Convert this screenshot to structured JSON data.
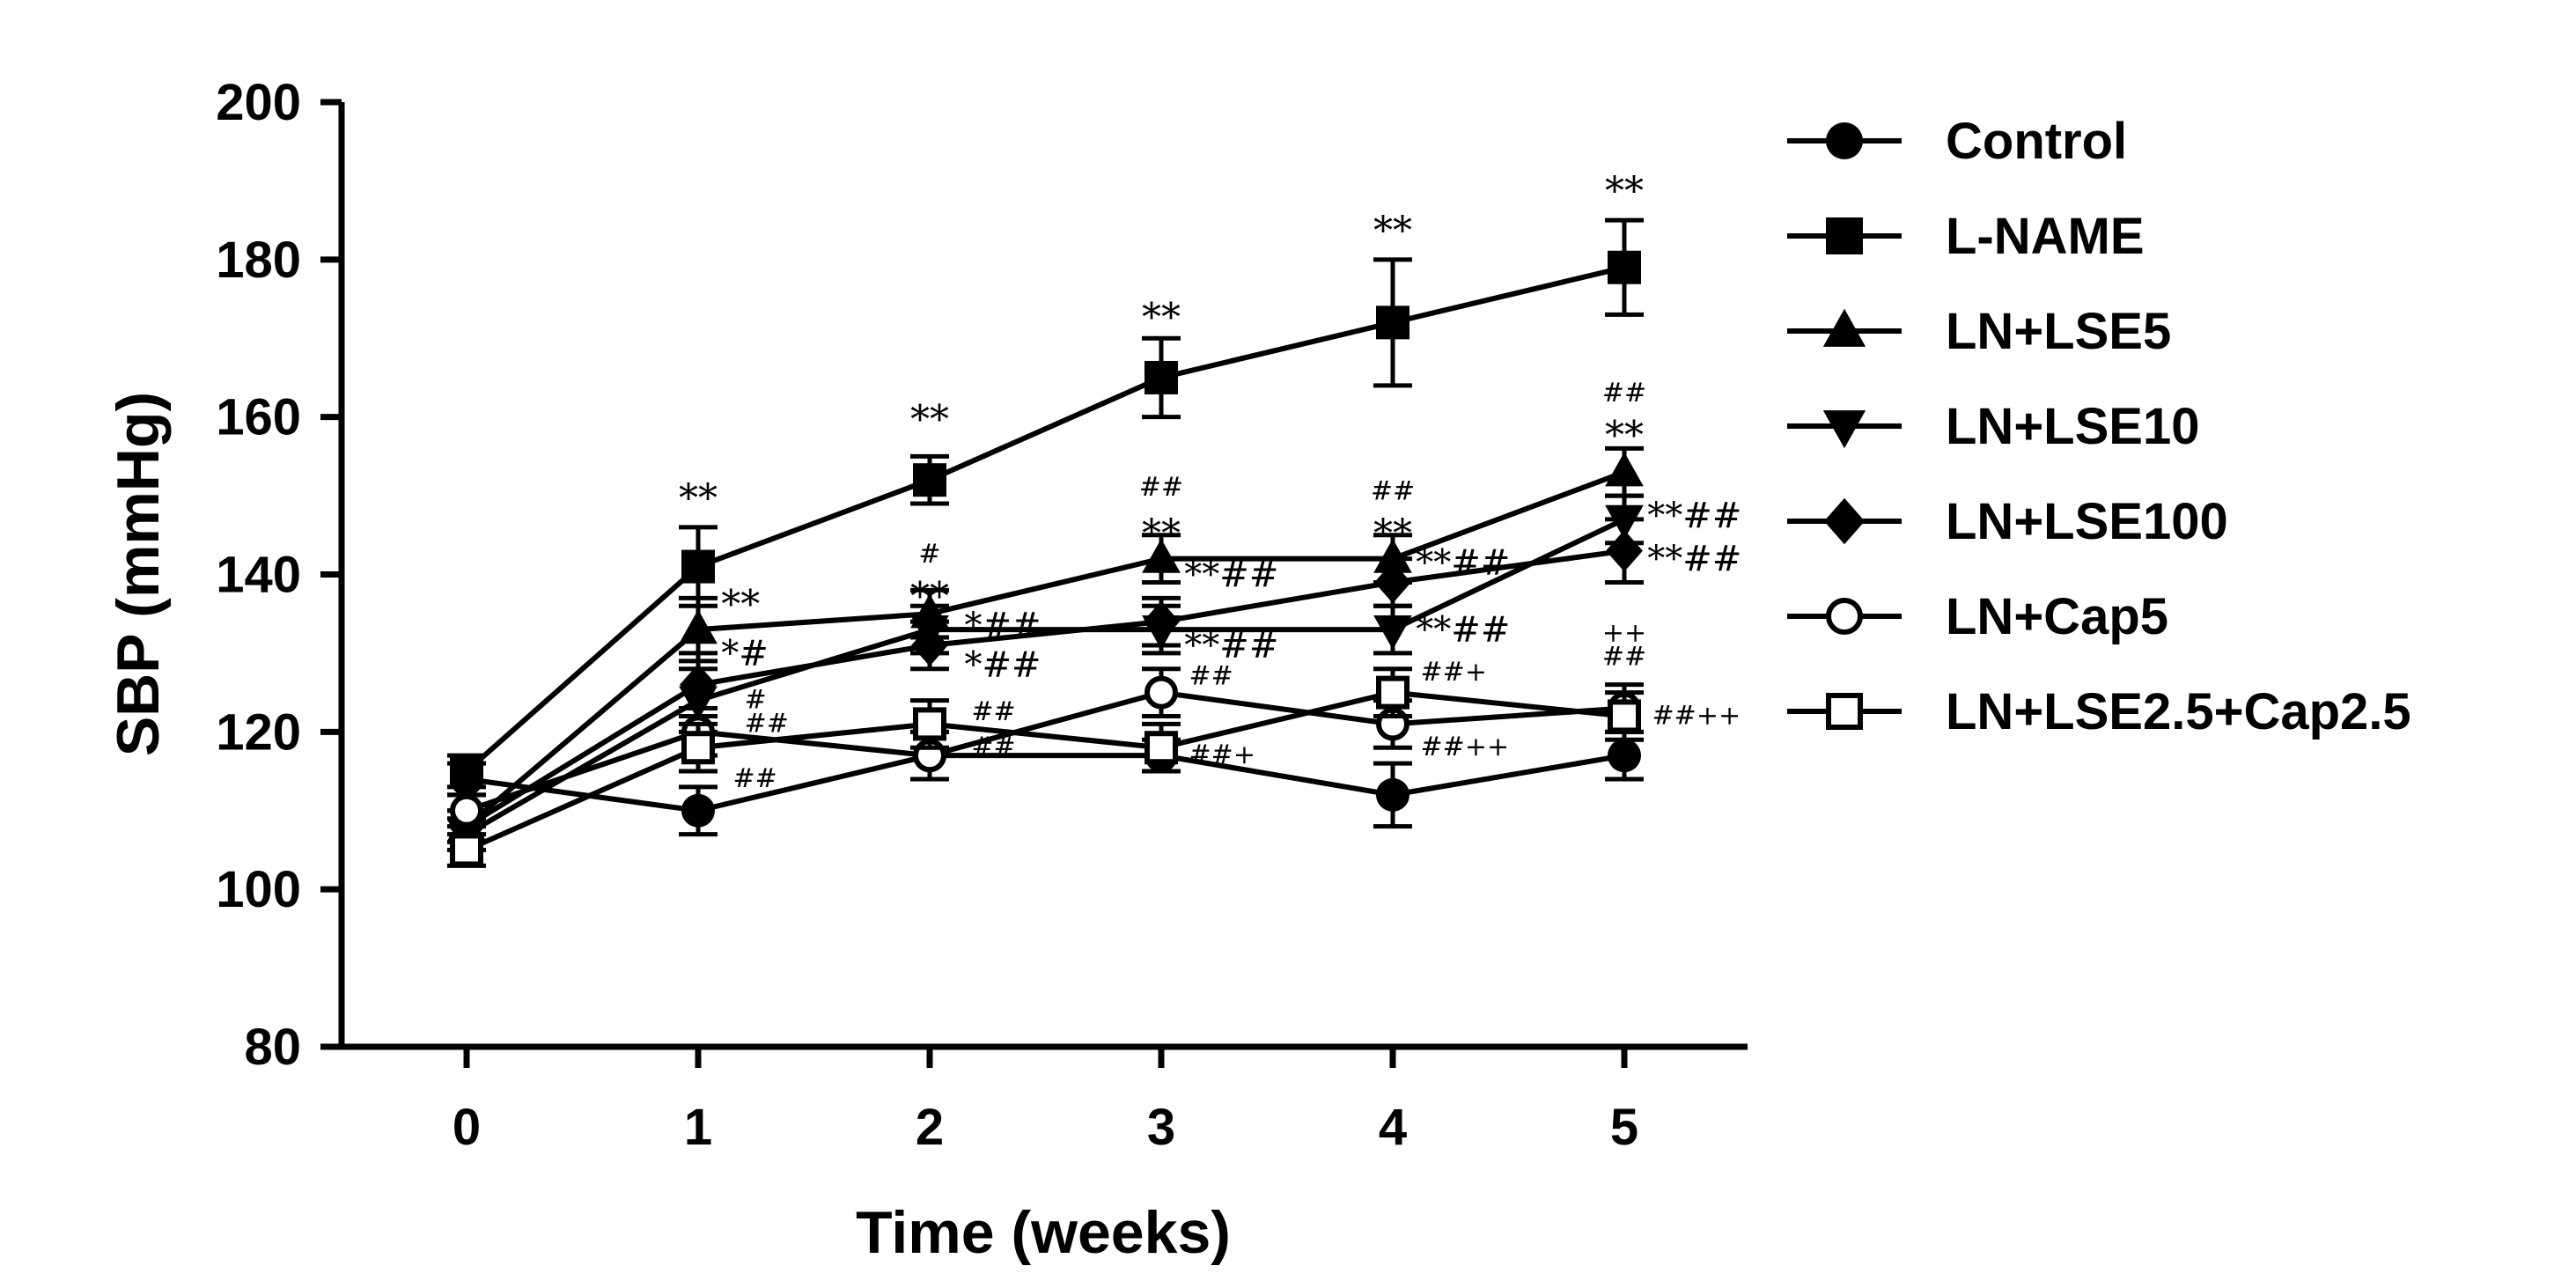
{
  "chart_data": {
    "type": "line",
    "title": "",
    "xlabel": "Time (weeks)",
    "ylabel": "SBP (mmHg)",
    "x": [
      0,
      1,
      2,
      3,
      4,
      5
    ],
    "x_ticks": [
      "0",
      "1",
      "2",
      "3",
      "4",
      "5"
    ],
    "ylim": [
      80,
      200
    ],
    "y_ticks": [
      "80",
      "100",
      "120",
      "140",
      "160",
      "180",
      "200"
    ],
    "grid": false,
    "legend_position": "right",
    "series": [
      {
        "name": "Control",
        "marker": "circle-filled",
        "values": [
          114,
          110,
          117,
          117,
          112,
          117
        ],
        "errors": [
          2,
          3,
          3,
          2,
          4,
          3
        ]
      },
      {
        "name": "L-NAME",
        "marker": "square-filled",
        "values": [
          115,
          141,
          152,
          165,
          172,
          179
        ],
        "errors": [
          2,
          5,
          3,
          5,
          8,
          6
        ]
      },
      {
        "name": "LN+LSE5",
        "marker": "triangle-up-filled",
        "values": [
          108,
          133,
          135,
          142,
          142,
          153
        ],
        "errors": [
          2,
          4,
          3,
          3,
          3,
          3
        ]
      },
      {
        "name": "LN+LSE10",
        "marker": "triangle-down-filled",
        "values": [
          107,
          124,
          133,
          133,
          133,
          147
        ],
        "errors": [
          2,
          4,
          3,
          3,
          3,
          3
        ]
      },
      {
        "name": "LN+LSE100",
        "marker": "diamond-filled",
        "values": [
          108,
          126,
          131,
          134,
          139,
          143
        ],
        "errors": [
          2,
          4,
          3,
          3,
          3,
          4
        ]
      },
      {
        "name": "LN+Cap5",
        "marker": "circle-open",
        "values": [
          110,
          120,
          117,
          125,
          121,
          123
        ],
        "errors": [
          2,
          3,
          3,
          3,
          3,
          3
        ]
      },
      {
        "name": "LN+LSE2.5+Cap2.5",
        "marker": "square-open",
        "values": [
          105,
          118,
          121,
          118,
          125,
          122
        ],
        "errors": [
          2,
          3,
          3,
          3,
          3,
          3
        ]
      }
    ],
    "annotations": [
      {
        "text": "**",
        "x": 1,
        "y": 148,
        "size": 44,
        "anchor": "middle"
      },
      {
        "text": "**",
        "x": 2,
        "y": 158,
        "size": 44,
        "anchor": "middle"
      },
      {
        "text": "**",
        "x": 3,
        "y": 171,
        "size": 44,
        "anchor": "middle"
      },
      {
        "text": "**",
        "x": 4,
        "y": 182,
        "size": 44,
        "anchor": "middle"
      },
      {
        "text": "**",
        "x": 5,
        "y": 187,
        "size": 44,
        "anchor": "middle"
      },
      {
        "text": "##",
        "x": 5,
        "y": 162,
        "size": 30,
        "anchor": "middle"
      },
      {
        "text": "**",
        "x": 5,
        "y": 156,
        "size": 44,
        "anchor": "middle"
      },
      {
        "text": "##",
        "x": 3,
        "y": 150,
        "size": 30,
        "anchor": "middle"
      },
      {
        "text": "**",
        "x": 3,
        "y": 143.5,
        "size": 44,
        "anchor": "middle"
      },
      {
        "text": "##",
        "x": 4,
        "y": 149.5,
        "size": 30,
        "anchor": "middle"
      },
      {
        "text": "**",
        "x": 4,
        "y": 143.5,
        "size": 44,
        "anchor": "middle"
      },
      {
        "text": "#",
        "x": 2,
        "y": 141.5,
        "size": 30,
        "anchor": "middle"
      },
      {
        "text": "**",
        "x": 2,
        "y": 135.5,
        "size": 44,
        "anchor": "middle"
      },
      {
        "text": "**",
        "x": 1.1,
        "y": 134.5,
        "size": 44,
        "anchor": "start"
      },
      {
        "text": "*#",
        "x": 1.1,
        "y": 128.5,
        "size": 40,
        "anchor": "start"
      },
      {
        "text": "#",
        "x": 1.2,
        "y": 123,
        "size": 30,
        "anchor": "start"
      },
      {
        "text": "##",
        "x": 1.2,
        "y": 120,
        "size": 30,
        "anchor": "start"
      },
      {
        "text": "##",
        "x": 1.15,
        "y": 113,
        "size": 30,
        "anchor": "start"
      },
      {
        "text": "*##",
        "x": 2.15,
        "y": 132,
        "size": 40,
        "anchor": "start"
      },
      {
        "text": "*##",
        "x": 2.15,
        "y": 127,
        "size": 40,
        "anchor": "start"
      },
      {
        "text": "##",
        "x": 2.18,
        "y": 121.5,
        "size": 30,
        "anchor": "start"
      },
      {
        "text": "##",
        "x": 2.18,
        "y": 117,
        "size": 30,
        "anchor": "start"
      },
      {
        "text": "**##",
        "x": 3.1,
        "y": 138.5,
        "size": 40,
        "anchor": "start"
      },
      {
        "text": "**##",
        "x": 3.1,
        "y": 129.5,
        "size": 40,
        "anchor": "start"
      },
      {
        "text": "##",
        "x": 3.12,
        "y": 126,
        "size": 30,
        "anchor": "start"
      },
      {
        "text": "##+",
        "x": 3.12,
        "y": 116,
        "size": 30,
        "anchor": "start"
      },
      {
        "text": "**##",
        "x": 4.1,
        "y": 140,
        "size": 40,
        "anchor": "start"
      },
      {
        "text": "**##",
        "x": 4.1,
        "y": 131.5,
        "size": 40,
        "anchor": "start"
      },
      {
        "text": "##+",
        "x": 4.12,
        "y": 126.5,
        "size": 30,
        "anchor": "start"
      },
      {
        "text": "##++",
        "x": 4.12,
        "y": 117,
        "size": 30,
        "anchor": "start"
      },
      {
        "text": "**##",
        "x": 5.1,
        "y": 146,
        "size": 40,
        "anchor": "start"
      },
      {
        "text": "**##",
        "x": 5.1,
        "y": 140.5,
        "size": 40,
        "anchor": "start"
      },
      {
        "text": "++",
        "x": 5,
        "y": 131.5,
        "size": 30,
        "anchor": "middle"
      },
      {
        "text": "##",
        "x": 5,
        "y": 128.5,
        "size": 30,
        "anchor": "middle"
      },
      {
        "text": "##++",
        "x": 5.12,
        "y": 121,
        "size": 30,
        "anchor": "start"
      }
    ]
  }
}
